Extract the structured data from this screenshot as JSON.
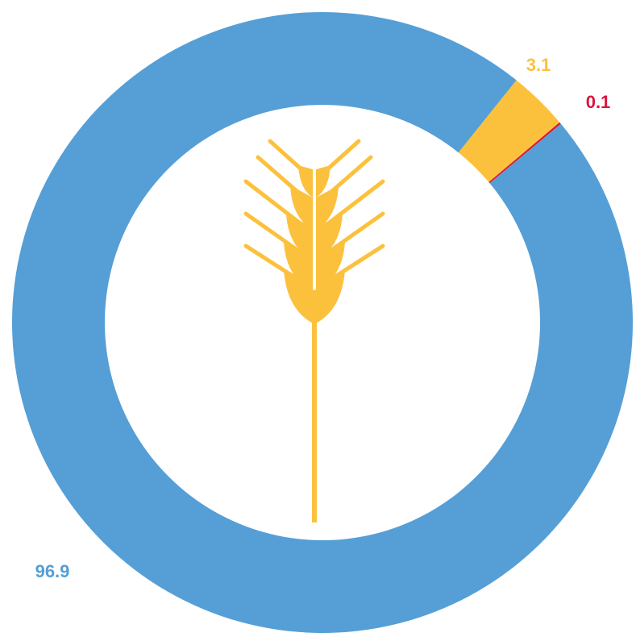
{
  "chart_data": {
    "type": "donut",
    "categories": [
      null,
      null,
      null
    ],
    "values": [
      96.9,
      3.1,
      0.1
    ],
    "colors": [
      "#559fd6",
      "#fcc13c",
      "#d9163e"
    ]
  }
}
